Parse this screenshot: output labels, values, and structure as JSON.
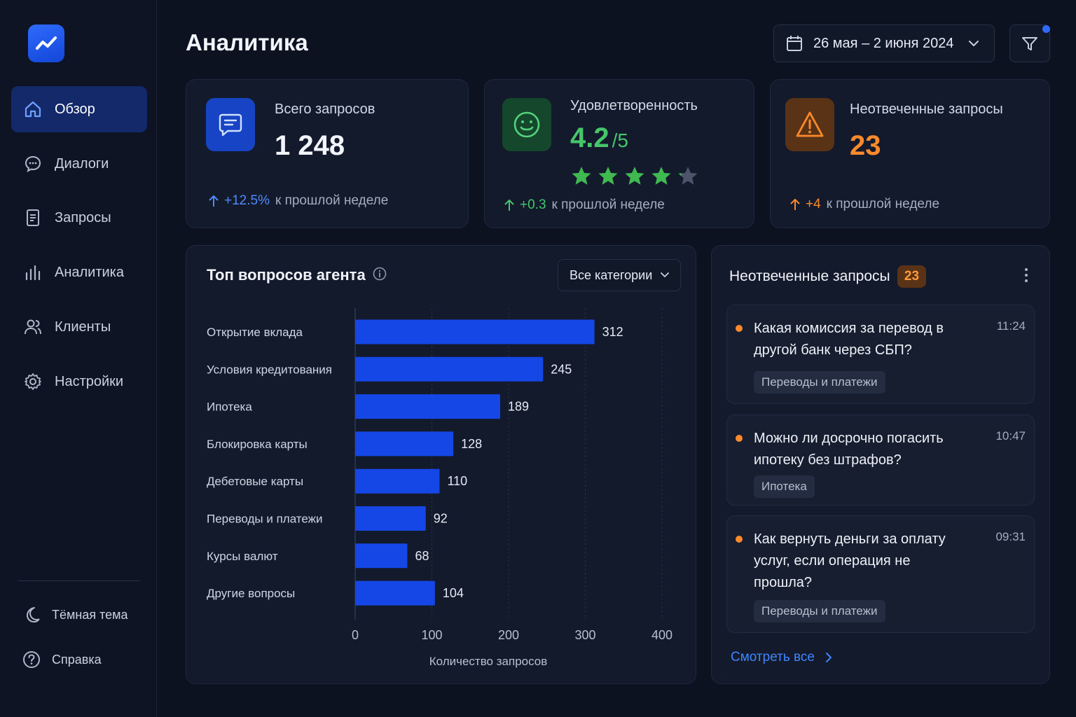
{
  "sidebar": {
    "nav": [
      {
        "label": "Обзор",
        "icon": "home-icon",
        "active": true
      },
      {
        "label": "Диалоги",
        "icon": "chat-bubble-icon",
        "active": false
      },
      {
        "label": "Запросы",
        "icon": "document-icon",
        "active": false
      },
      {
        "label": "Аналитика",
        "icon": "bar-chart-icon",
        "active": false
      },
      {
        "label": "Клиенты",
        "icon": "users-icon",
        "active": false
      },
      {
        "label": "Настройки",
        "icon": "gear-icon",
        "active": false
      }
    ],
    "theme_label": "Тёмная тема",
    "help_label": "Справка"
  },
  "header": {
    "title": "Аналитика",
    "date_range": "26 мая – 2 июня 2024"
  },
  "kpis": {
    "total": {
      "label": "Всего запросов",
      "value": "1 248",
      "delta": "+12.5%",
      "delta_suffix": "к прошлой неделе"
    },
    "satisfaction": {
      "label": "Удовлетворенность",
      "value": "4.2",
      "value_suffix": "/5",
      "rating": 4.2,
      "delta": "+0.3",
      "delta_suffix": "к прошлой неделе"
    },
    "unanswered": {
      "label": "Неотвеченные запросы",
      "value": "23",
      "delta": "+4",
      "delta_suffix": "к прошлой неделе"
    }
  },
  "chart_panel": {
    "title": "Топ вопросов агента",
    "filter_label": "Все категории"
  },
  "chart_data": {
    "type": "bar",
    "orientation": "horizontal",
    "categories": [
      "Открытие вклада",
      "Условия кредитования",
      "Ипотека",
      "Блокировка карты",
      "Дебетовые карты",
      "Переводы и платежи",
      "Курсы валют",
      "Другие вопросы"
    ],
    "values": [
      312,
      245,
      189,
      128,
      110,
      92,
      68,
      104
    ],
    "xlabel": "Количество запросов",
    "xlim": [
      0,
      400
    ],
    "xticks": [
      0,
      100,
      200,
      300,
      400
    ],
    "grid": true,
    "bar_color": "#1447e6"
  },
  "unanswered_panel": {
    "title": "Неотвеченные запросы",
    "count": "23",
    "items": [
      {
        "text": "Какая комиссия за перевод в другой банк через СБП?",
        "time": "11:24",
        "tag": "Переводы и платежи"
      },
      {
        "text": "Можно ли досрочно погасить ипотеку без штрафов?",
        "time": "10:47",
        "tag": "Ипотека"
      },
      {
        "text": "Как вернуть деньги за оплату услуг, если операция не прошла?",
        "time": "09:31",
        "tag": "Переводы и платежи"
      }
    ],
    "see_all_label": "Смотреть все"
  },
  "colors": {
    "accent": "#2f6bff",
    "positive": "#3fb950",
    "warning": "#ff8a2b"
  }
}
